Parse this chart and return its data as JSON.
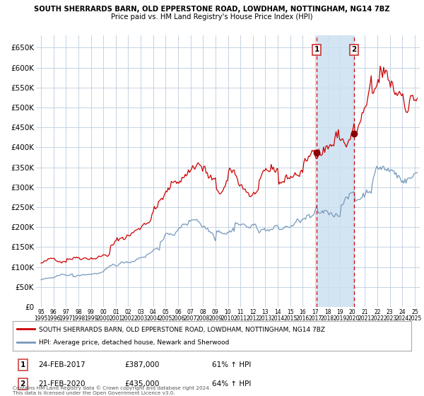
{
  "title": "SOUTH SHERRARDS BARN, OLD EPPERSTONE ROAD, LOWDHAM, NOTTINGHAM, NG14 7BZ",
  "subtitle": "Price paid vs. HM Land Registry's House Price Index (HPI)",
  "legend_line1": "SOUTH SHERRARDS BARN, OLD EPPERSTONE ROAD, LOWDHAM, NOTTINGHAM, NG14 7BZ",
  "legend_line2": "HPI: Average price, detached house, Newark and Sherwood",
  "red_color": "#cc0000",
  "blue_color": "#7799bb",
  "marker_color": "#880000",
  "vline_color": "#cc0000",
  "shade_color": "#cce0f0",
  "annotation1_label": "1",
  "annotation1_date": "24-FEB-2017",
  "annotation1_price": "£387,000",
  "annotation1_hpi": "61% ↑ HPI",
  "annotation2_label": "2",
  "annotation2_date": "21-FEB-2020",
  "annotation2_price": "£435,000",
  "annotation2_hpi": "64% ↑ HPI",
  "copyright": "Contains HM Land Registry data © Crown copyright and database right 2024.\nThis data is licensed under the Open Government Licence v3.0.",
  "ylim": [
    0,
    680000
  ],
  "yticks": [
    0,
    50000,
    100000,
    150000,
    200000,
    250000,
    300000,
    350000,
    400000,
    450000,
    500000,
    550000,
    600000,
    650000
  ],
  "ytick_labels": [
    "£0",
    "£50K",
    "£100K",
    "£150K",
    "£200K",
    "£250K",
    "£300K",
    "£350K",
    "£400K",
    "£450K",
    "£500K",
    "£550K",
    "£600K",
    "£650K"
  ],
  "sale1_x": 2017.13,
  "sale1_y": 387000,
  "sale2_x": 2020.13,
  "sale2_y": 435000,
  "shade_start": 2017.13,
  "shade_end": 2020.13,
  "xmin": 1994.6,
  "xmax": 2025.4
}
